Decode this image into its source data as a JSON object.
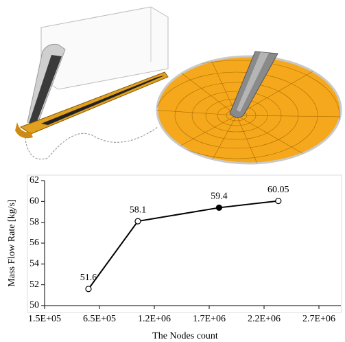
{
  "chart_data": {
    "type": "line",
    "xlabel": "The Nodes count",
    "ylabel": "Mass Flow Rate [kg/s]",
    "x": [
      550000,
      1000000,
      1740000,
      2280000
    ],
    "values": [
      51.6,
      58.1,
      59.4,
      60.05
    ],
    "color": "#000000",
    "marker_fills": [
      "#ffffff",
      "#ffffff",
      "#000000",
      "#ffffff"
    ],
    "xlim": [
      150000,
      2650000
    ],
    "xticks": [
      {
        "value": 150000,
        "label": "1.5E+05"
      },
      {
        "value": 650000,
        "label": "6.5E+05"
      },
      {
        "value": 1150000,
        "label": "1.2E+06"
      },
      {
        "value": 1650000,
        "label": "1.7E+06"
      },
      {
        "value": 2150000,
        "label": "2.2E+06"
      },
      {
        "value": 2650000,
        "label": "2.7E+06"
      }
    ],
    "ylim": [
      50,
      62
    ],
    "yticks": [
      50,
      52,
      54,
      56,
      58,
      60,
      62
    ],
    "grid": false
  }
}
